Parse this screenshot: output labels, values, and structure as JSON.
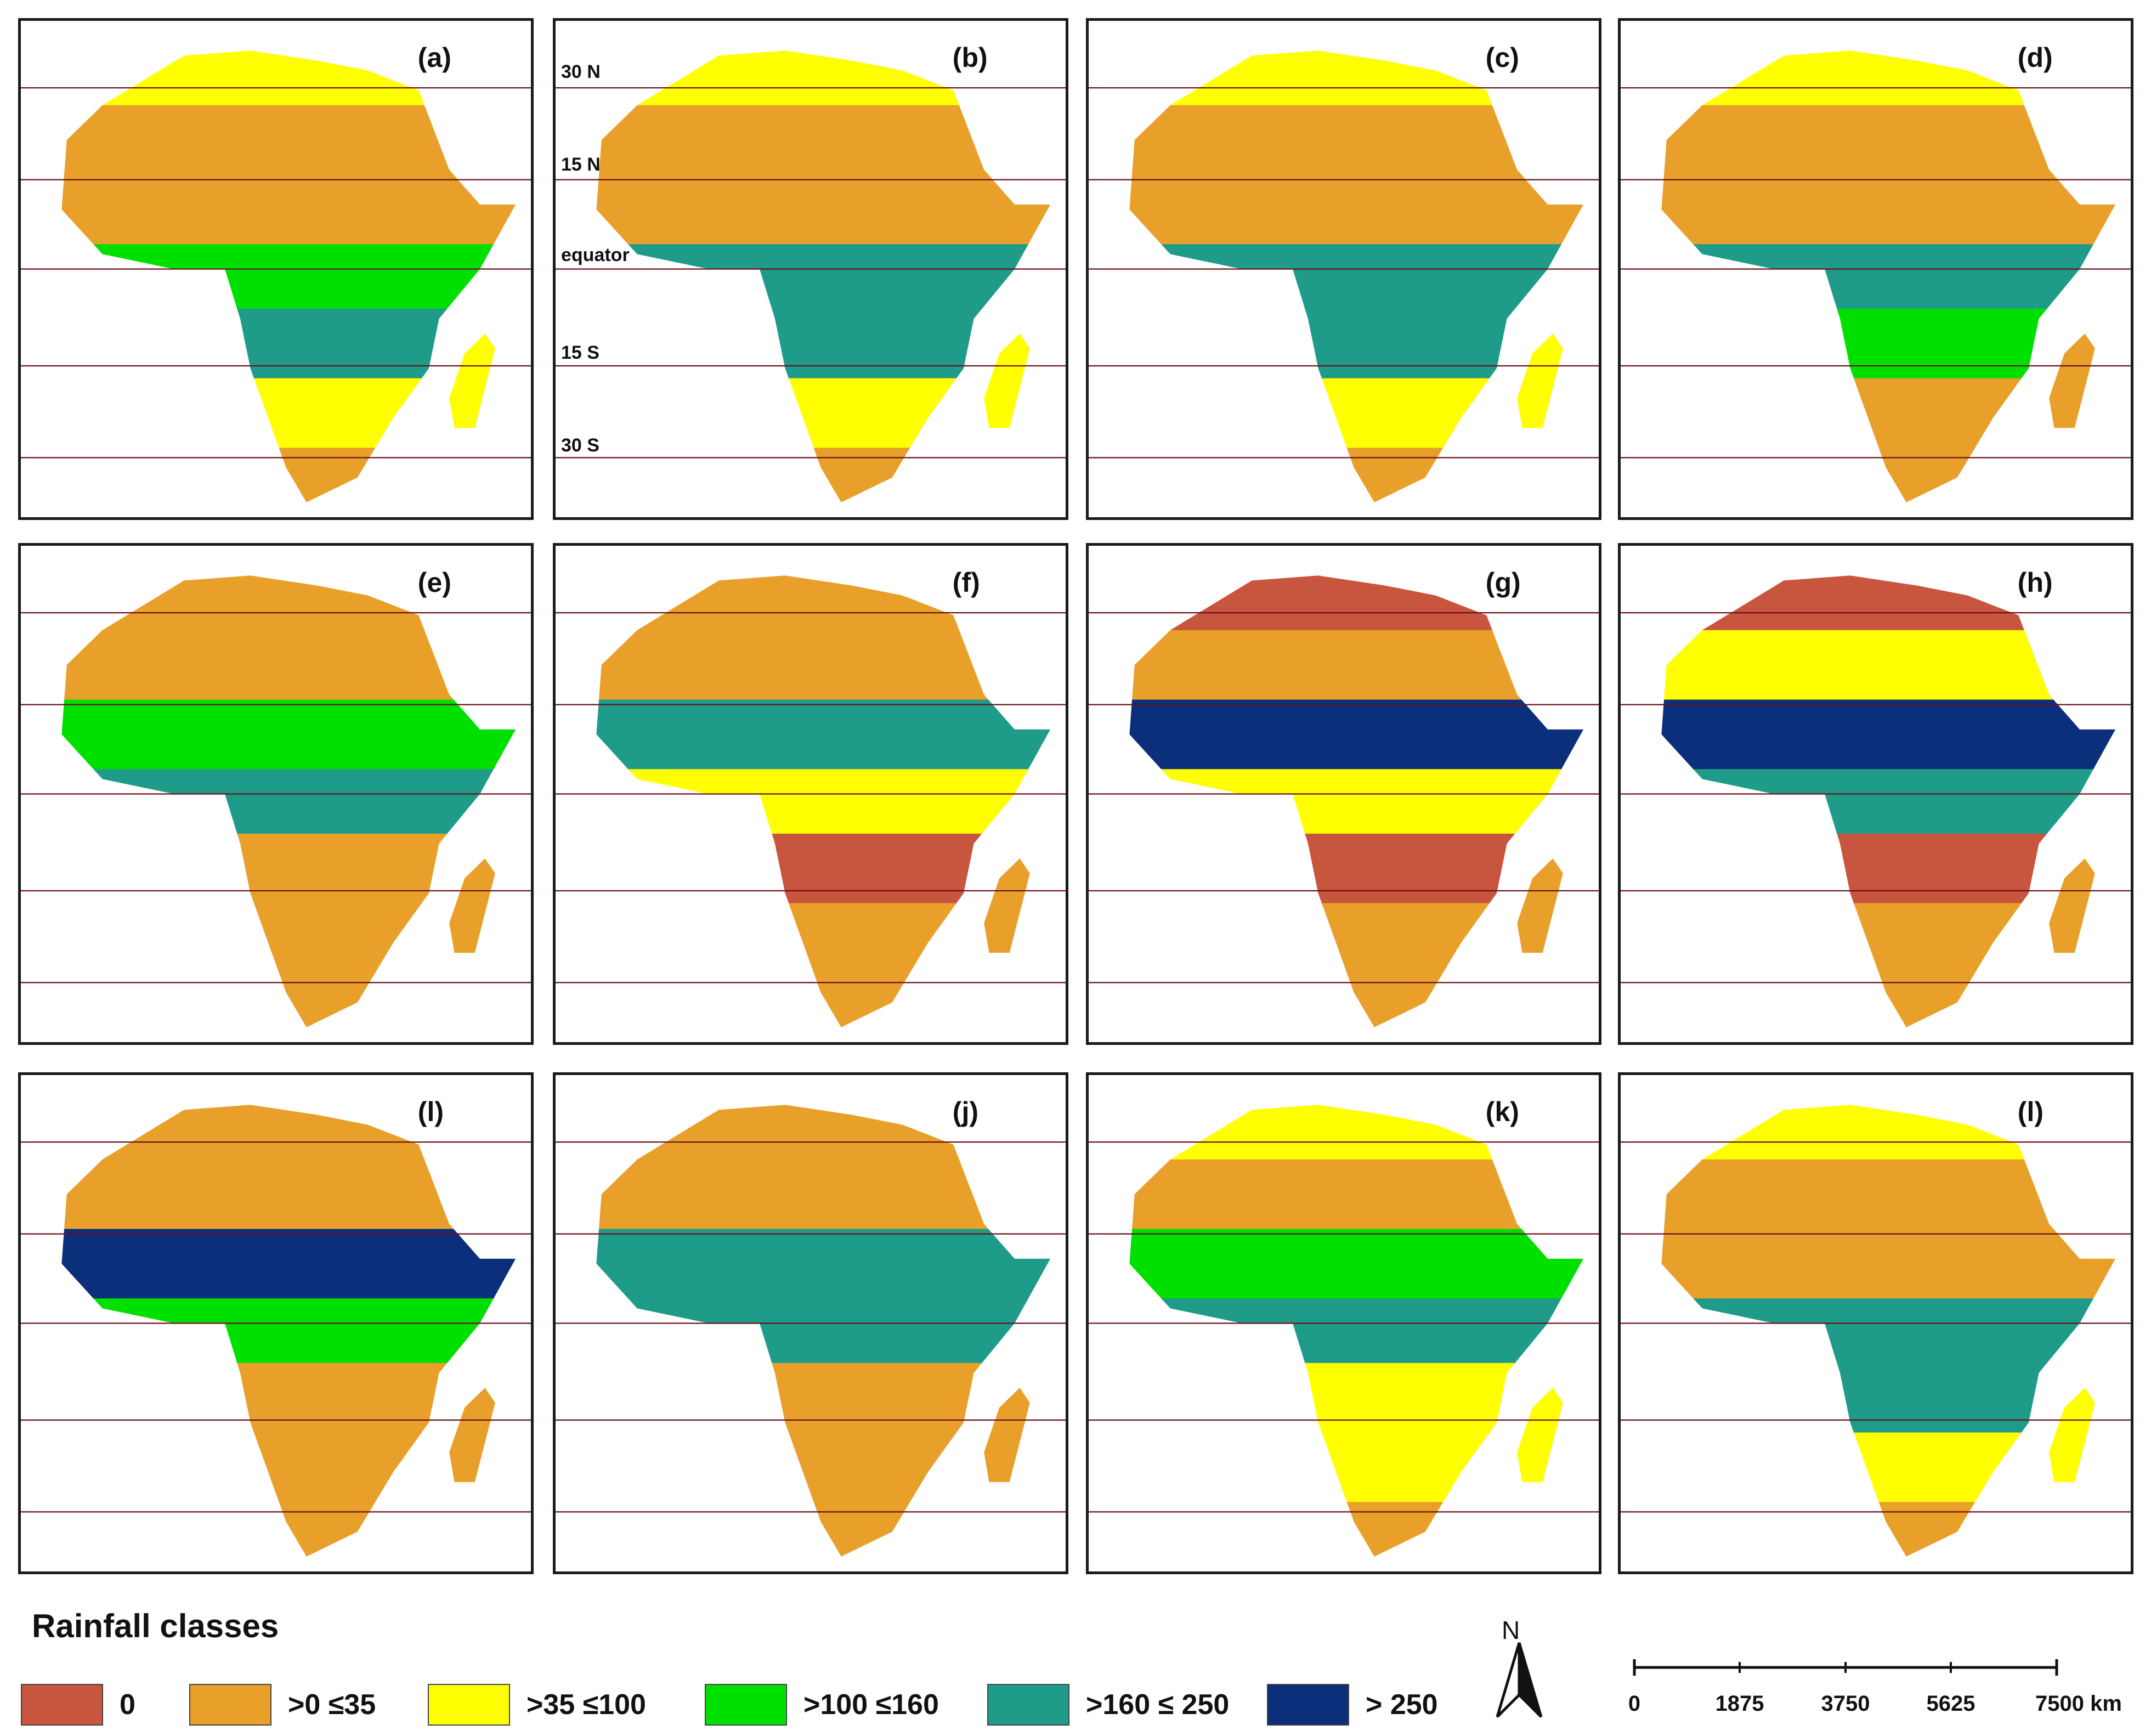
{
  "panels": [
    {
      "label": "(a)",
      "bands": [
        "y",
        "o",
        "o",
        "g",
        "t",
        "y",
        "o"
      ],
      "lats": false
    },
    {
      "label": "(b)",
      "bands": [
        "y",
        "o",
        "o",
        "t",
        "t",
        "y",
        "o"
      ],
      "lats": true
    },
    {
      "label": "(c)",
      "bands": [
        "y",
        "o",
        "o",
        "t",
        "t",
        "y",
        "o"
      ],
      "lats": false
    },
    {
      "label": "(d)",
      "bands": [
        "y",
        "o",
        "o",
        "t",
        "g",
        "o",
        "o"
      ],
      "lats": false
    },
    {
      "label": "(e)",
      "bands": [
        "o",
        "o",
        "g",
        "t",
        "o",
        "o",
        "o"
      ],
      "lats": false
    },
    {
      "label": "(f)",
      "bands": [
        "o",
        "o",
        "t",
        "y",
        "r",
        "o",
        "o"
      ],
      "lats": false
    },
    {
      "label": "(g)",
      "bands": [
        "r",
        "o",
        "d",
        "y",
        "r",
        "o",
        "o"
      ],
      "lats": false
    },
    {
      "label": "(h)",
      "bands": [
        "r",
        "y",
        "d",
        "t",
        "r",
        "o",
        "o"
      ],
      "lats": false
    },
    {
      "label": "(l)",
      "bands": [
        "o",
        "o",
        "d",
        "g",
        "o",
        "o",
        "o"
      ],
      "lats": false
    },
    {
      "label": "(j)",
      "bands": [
        "o",
        "o",
        "t",
        "t",
        "o",
        "o",
        "o"
      ],
      "lats": false
    },
    {
      "label": "(k)",
      "bands": [
        "y",
        "o",
        "g",
        "t",
        "y",
        "y",
        "o"
      ],
      "lats": false
    },
    {
      "label": "(l)",
      "bands": [
        "y",
        "o",
        "o",
        "t",
        "t",
        "y",
        "o"
      ],
      "lats": false
    }
  ],
  "latitude_labels": [
    "30 N",
    "15 N",
    "equator",
    "15 S",
    "30 S"
  ],
  "legend": {
    "title": "Rainfall classes",
    "items": [
      {
        "label": "0",
        "color": "#c8553d"
      },
      {
        "label": ">0 ≤35",
        "color": "#e8a02a"
      },
      {
        "label": ">35 ≤100",
        "color": "#ffff00"
      },
      {
        "label": ">100 ≤160",
        "color": "#00e000"
      },
      {
        "label": ">160 ≤ 250",
        "color": "#1f9b8a"
      },
      {
        "label": "> 250",
        "color": "#0b2f7a"
      }
    ]
  },
  "north_arrow": {
    "letter": "N"
  },
  "scale_bar": {
    "ticks": [
      "0",
      "1875",
      "3750",
      "5625",
      "7500 km"
    ]
  },
  "colors": {
    "r": "#c8553d",
    "o": "#e8a02a",
    "y": "#ffff00",
    "g": "#00e000",
    "t": "#1f9b8a",
    "d": "#0b2f7a",
    "line": "#6b0f1a"
  }
}
